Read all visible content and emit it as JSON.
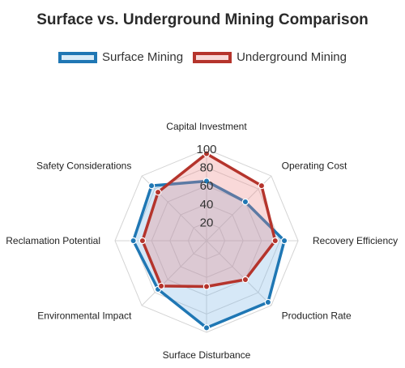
{
  "chart_data": {
    "type": "radar",
    "title": "Surface vs. Underground Mining Comparison",
    "axes": [
      "Capital Investment",
      "Operating Cost",
      "Recovery Efficiency",
      "Production Rate",
      "Surface Disturbance",
      "Environmental Impact",
      "Reclamation Potential",
      "Safety Considerations"
    ],
    "r_ticks": [
      20,
      40,
      60,
      80,
      100
    ],
    "r_range": [
      0,
      100
    ],
    "grid": true,
    "legend_position": "top",
    "series": [
      {
        "name": "Surface Mining",
        "values": [
          65,
          60,
          85,
          95,
          95,
          75,
          80,
          85
        ],
        "stroke": "#1f77b4",
        "fill": "rgba(120, 180, 230, 0.30)"
      },
      {
        "name": "Underground Mining",
        "values": [
          95,
          85,
          75,
          60,
          50,
          70,
          70,
          75
        ],
        "stroke": "#b5342c",
        "fill": "rgba(235, 130, 130, 0.30)"
      }
    ]
  }
}
